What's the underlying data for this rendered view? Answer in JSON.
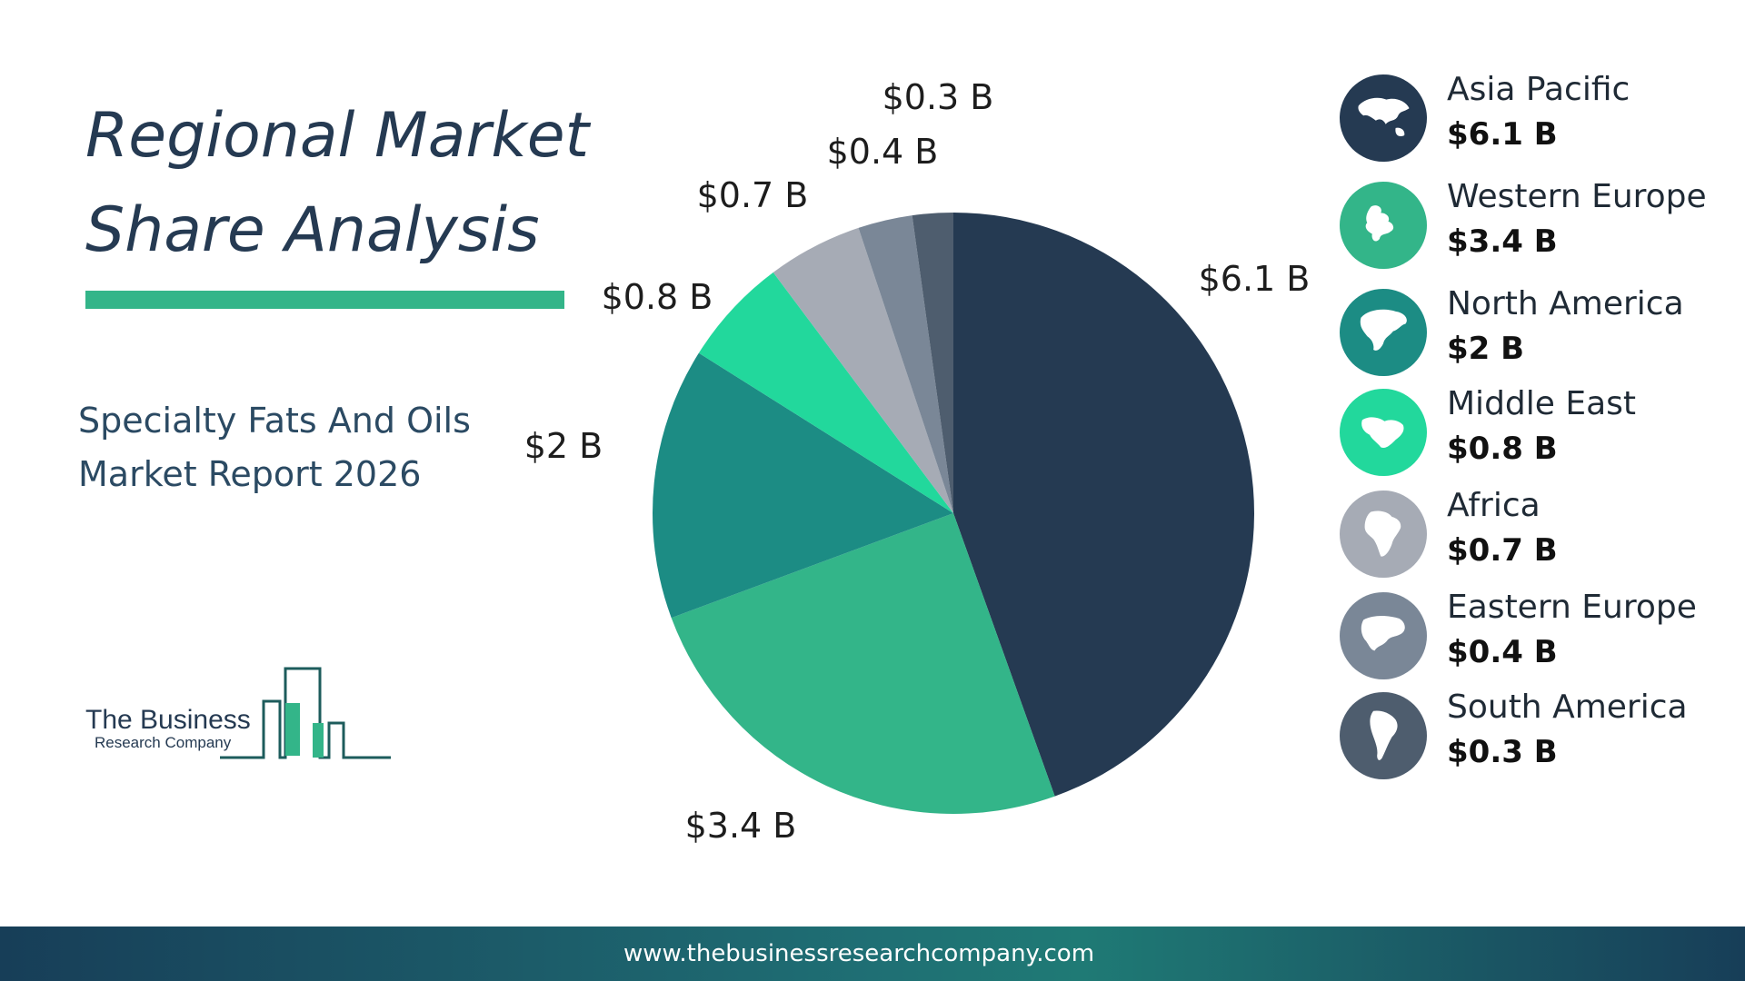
{
  "header": {
    "title_line1": "Regional Market",
    "title_line2": "Share Analysis",
    "subtitle_line1": "Specialty Fats And Oils",
    "subtitle_line2": "Market Report 2026"
  },
  "logo": {
    "line1": "The Business",
    "line2": "Research Company"
  },
  "chart_data": {
    "type": "pie",
    "title": "Regional Market Share Analysis",
    "start": "12 o'clock",
    "direction": "clockwise",
    "categories": [
      "Asia Pacific",
      "Western Europe",
      "North America",
      "Middle East",
      "Africa",
      "Eastern Europe",
      "South America"
    ],
    "values": [
      6.1,
      3.4,
      2,
      0.8,
      0.7,
      0.4,
      0.3
    ],
    "labels": [
      "$6.1 B",
      "$3.4 B",
      "$2 B",
      "$0.8 B",
      "$0.7 B",
      "$0.4 B",
      "$0.3 B"
    ],
    "colors": [
      "#253a52",
      "#33b589",
      "#1c8c84",
      "#22d89c",
      "#a6abb5",
      "#7a8797",
      "#4e5d6e"
    ],
    "legend_placement": "right"
  },
  "legend": {
    "items": [
      {
        "name": "Asia Pacific",
        "value": "$6.1 B",
        "color": "#253a52",
        "icon": "asia-pacific-map-icon"
      },
      {
        "name": "Western Europe",
        "value": "$3.4 B",
        "color": "#33b589",
        "icon": "western-europe-map-icon"
      },
      {
        "name": "North America",
        "value": "$2 B",
        "color": "#1c8c84",
        "icon": "north-america-map-icon"
      },
      {
        "name": "Middle East",
        "value": "$0.8 B",
        "color": "#22d89c",
        "icon": "middle-east-map-icon"
      },
      {
        "name": "Africa",
        "value": "$0.7 B",
        "color": "#a6abb5",
        "icon": "africa-map-icon"
      },
      {
        "name": "Eastern Europe",
        "value": "$0.4 B",
        "color": "#7a8797",
        "icon": "eastern-europe-map-icon"
      },
      {
        "name": "South America",
        "value": "$0.3 B",
        "color": "#4e5d6e",
        "icon": "south-america-map-icon"
      }
    ]
  },
  "footer": {
    "url": "www.thebusinessresearchcompany.com"
  }
}
